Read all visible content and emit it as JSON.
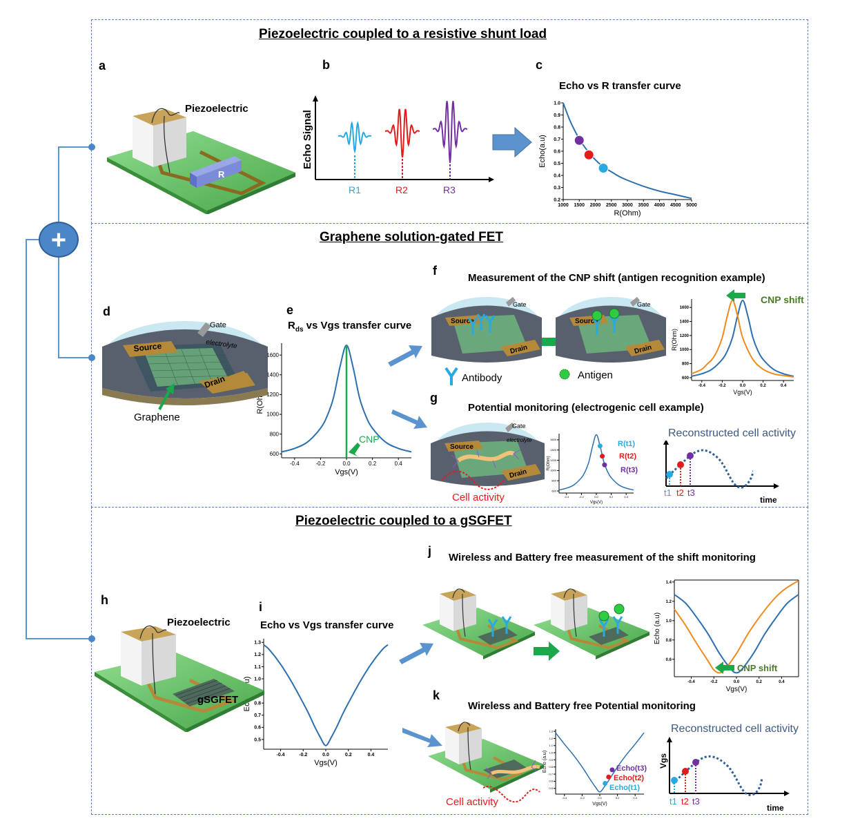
{
  "sections": [
    {
      "title": "Piezoelectric coupled to a resistive shunt load"
    },
    {
      "title": "Graphene solution-gated FET"
    },
    {
      "title": "Piezoelectric coupled to a gSGFET"
    }
  ],
  "panel_letters": [
    "a",
    "b",
    "c",
    "d",
    "e",
    "f",
    "g",
    "h",
    "i",
    "j",
    "k"
  ],
  "labels": {
    "piezo_a": "Piezoelectric",
    "r_label": "R",
    "echo_signal": "Echo Signal",
    "r1": "R1",
    "r2": "R2",
    "r3": "R3",
    "graphene": "Graphene",
    "source": "Source",
    "drain": "Drain",
    "gate": "Gate",
    "electrolyte": "electrolyte",
    "cnp": "CNP",
    "antibody": "Antibody",
    "antigen": "Antigen",
    "cnp_shift": "CNP shift",
    "cell_activity": "Cell activity",
    "rt1": "R(t1)",
    "rt2": "R(t2)",
    "rt3": "R(t3)",
    "reconstructed": "Reconstructed cell activity",
    "time": "time",
    "vgs": "Vgs",
    "t1": "t1",
    "t2": "t2",
    "t3": "t3",
    "piezo_h": "Piezoelectric",
    "gsgfet": "gSGFET",
    "echo_t1": "Echo(t1)",
    "echo_t2": "Echo(t2)",
    "echo_t3": "Echo(t3)"
  },
  "captions": {
    "c": "Echo vs R transfer curve",
    "e_main": "R",
    "e_sub": "ds",
    "e_rest": " vs Vgs transfer curve",
    "f": "Measurement of the CNP shift (antigen recognition example)",
    "g": "Potential monitoring (electrogenic cell example)",
    "i": "Echo vs Vgs transfer curve",
    "j": "Wireless and Battery free measurement of the shift monitoring",
    "k": "Wireless and Battery free Potential monitoring"
  },
  "colors": {
    "curve": "#2b6fae",
    "orange": "#f08a1c",
    "cyan": "#27a9e1",
    "red": "#e41b1b",
    "purple": "#7030a0",
    "green": "#1aa84a",
    "arrow": "#5b93cf",
    "cnp_shift": "#4a7a2a",
    "board": "#7fd07f"
  },
  "chart_data": [
    {
      "id": "c",
      "type": "line",
      "title": "Echo vs R transfer curve",
      "xlabel": "R(Ohm)",
      "ylabel": "Echo(a.u)",
      "xlim": [
        1000,
        5000
      ],
      "ylim": [
        0.2,
        1.0
      ],
      "xticks": [
        "1000",
        "1500",
        "2000",
        "2500",
        "3000",
        "3500",
        "4000",
        "4500",
        "5000"
      ],
      "yticks": [
        "0.2",
        "0.3",
        "0.4",
        "0.5",
        "0.6",
        "0.7",
        "0.8",
        "0.9",
        "1.0"
      ],
      "series": [
        {
          "x": [
            1000,
            1200,
            1400,
            1600,
            1800,
            2000,
            2250,
            2500,
            2750,
            3000,
            3500,
            4000,
            4500,
            5000
          ],
          "y": [
            1.0,
            0.86,
            0.75,
            0.66,
            0.59,
            0.53,
            0.47,
            0.43,
            0.39,
            0.36,
            0.31,
            0.27,
            0.24,
            0.21
          ]
        }
      ],
      "markers": [
        {
          "x": 1500,
          "y": 0.69,
          "color": "purple"
        },
        {
          "x": 1800,
          "y": 0.57,
          "color": "red"
        },
        {
          "x": 2250,
          "y": 0.46,
          "color": "cyan"
        }
      ]
    },
    {
      "id": "e",
      "type": "line",
      "title": "Rds vs Vgs transfer curve",
      "xlabel": "Vgs(V)",
      "ylabel": "R(Ohm)",
      "xlim": [
        -0.5,
        0.5
      ],
      "ylim": [
        560,
        1720
      ],
      "xticks": [
        "-0.4",
        "-0.2",
        "0.0",
        "0.2",
        "0.4"
      ],
      "yticks": [
        "600",
        "800",
        "1000",
        "1200",
        "1400",
        "1600"
      ],
      "cnp": 0.0,
      "series": [
        {
          "x": [
            -0.5,
            -0.4,
            -0.3,
            -0.2,
            -0.15,
            -0.1,
            -0.05,
            0,
            0.05,
            0.1,
            0.15,
            0.2,
            0.3,
            0.4,
            0.5
          ],
          "y": [
            620,
            655,
            720,
            860,
            980,
            1170,
            1480,
            1700,
            1480,
            1170,
            980,
            860,
            720,
            655,
            620
          ]
        }
      ]
    },
    {
      "id": "f",
      "type": "line",
      "xlabel": "Vgs(V)",
      "ylabel": "R(Ohm)",
      "xlim": [
        -0.5,
        0.5
      ],
      "ylim": [
        560,
        1720
      ],
      "xticks": [
        "-0.4",
        "-0.2",
        "0.0",
        "0.2",
        "0.4"
      ],
      "yticks": [
        "600",
        "800",
        "1000",
        "1200",
        "1400",
        "1600"
      ],
      "series": [
        {
          "color": "curve",
          "x": [
            -0.5,
            -0.4,
            -0.3,
            -0.2,
            -0.15,
            -0.1,
            -0.05,
            0,
            0.05,
            0.1,
            0.15,
            0.2,
            0.3,
            0.4,
            0.5
          ],
          "y": [
            620,
            655,
            720,
            860,
            980,
            1170,
            1480,
            1700,
            1480,
            1170,
            980,
            860,
            720,
            655,
            620
          ]
        },
        {
          "color": "orange",
          "x": [
            -0.5,
            -0.4,
            -0.35,
            -0.3,
            -0.25,
            -0.2,
            -0.15,
            -0.1,
            -0.05,
            0,
            0.1,
            0.2,
            0.3,
            0.4,
            0.5
          ],
          "y": [
            655,
            720,
            790,
            860,
            980,
            1170,
            1480,
            1700,
            1480,
            1170,
            860,
            720,
            655,
            630,
            610
          ]
        }
      ]
    },
    {
      "id": "g",
      "type": "line",
      "xlabel": "Vgs(V)",
      "ylabel": "R(Ohm)",
      "xlim": [
        -0.5,
        0.5
      ],
      "ylim": [
        560,
        1720
      ],
      "xticks": [
        "-0.4",
        "-0.2",
        "0.0",
        "0.2",
        "0.4"
      ],
      "yticks": [
        "600",
        "800",
        "1000",
        "1200",
        "1400",
        "1600"
      ],
      "series": [
        {
          "x": [
            -0.5,
            -0.4,
            -0.3,
            -0.2,
            -0.15,
            -0.1,
            -0.05,
            0,
            0.05,
            0.1,
            0.15,
            0.2,
            0.3,
            0.4,
            0.5
          ],
          "y": [
            620,
            655,
            720,
            860,
            980,
            1170,
            1480,
            1700,
            1480,
            1170,
            980,
            860,
            720,
            655,
            620
          ]
        }
      ],
      "markers": [
        {
          "x": 0.05,
          "y": 1480,
          "color": "cyan"
        },
        {
          "x": 0.08,
          "y": 1280,
          "color": "red"
        },
        {
          "x": 0.11,
          "y": 1110,
          "color": "purple"
        }
      ]
    },
    {
      "id": "i",
      "type": "line",
      "title": "Echo vs Vgs transfer curve",
      "xlabel": "Vgs(V)",
      "ylabel": "Echo (a.u)",
      "xlim": [
        -0.55,
        0.55
      ],
      "ylim": [
        0.42,
        1.33
      ],
      "xticks": [
        "-0.4",
        "-0.2",
        "0.0",
        "0.2",
        "0.4"
      ],
      "yticks": [
        "0.5",
        "0.6",
        "0.7",
        "0.8",
        "0.9",
        "1.0",
        "1.1",
        "1.2",
        "1.3"
      ],
      "series": [
        {
          "x": [
            -0.55,
            -0.5,
            -0.4,
            -0.3,
            -0.2,
            -0.15,
            -0.1,
            -0.05,
            0,
            0.05,
            0.1,
            0.15,
            0.2,
            0.3,
            0.4,
            0.5,
            0.55
          ],
          "y": [
            1.28,
            1.24,
            1.12,
            0.97,
            0.8,
            0.71,
            0.61,
            0.52,
            0.45,
            0.52,
            0.61,
            0.71,
            0.8,
            0.97,
            1.12,
            1.24,
            1.28
          ]
        }
      ]
    },
    {
      "id": "j",
      "type": "line",
      "xlabel": "Vgs(V)",
      "ylabel": "Echo (a.u)",
      "xlim": [
        -0.55,
        0.55
      ],
      "ylim": [
        0.42,
        1.42
      ],
      "xticks": [
        "-0.4",
        "-0.2",
        "0.0",
        "0.2",
        "0.4"
      ],
      "yticks": [
        "0.6",
        "0.8",
        "1.0",
        "1.2",
        "1.4"
      ],
      "series": [
        {
          "color": "curve",
          "x": [
            -0.55,
            -0.45,
            -0.35,
            -0.25,
            -0.15,
            -0.05,
            0,
            0.05,
            0.15,
            0.25,
            0.35,
            0.45,
            0.55
          ],
          "y": [
            1.27,
            1.18,
            1.03,
            0.86,
            0.66,
            0.5,
            0.46,
            0.5,
            0.66,
            0.86,
            1.03,
            1.18,
            1.27
          ]
        },
        {
          "color": "orange",
          "x": [
            -0.55,
            -0.45,
            -0.35,
            -0.25,
            -0.2,
            -0.15,
            -0.1,
            0,
            0.1,
            0.2,
            0.3,
            0.4,
            0.5,
            0.55
          ],
          "y": [
            1.12,
            0.95,
            0.76,
            0.58,
            0.49,
            0.46,
            0.5,
            0.66,
            0.86,
            1.03,
            1.18,
            1.3,
            1.38,
            1.41
          ]
        }
      ]
    },
    {
      "id": "k",
      "type": "line",
      "xlabel": "Vgs(V)",
      "ylabel": "Echo (a.u)",
      "xlim": [
        -0.5,
        0.5
      ],
      "ylim": [
        0.42,
        1.33
      ],
      "xticks": [
        "-0.4",
        "-0.2",
        "0.0",
        "0.2",
        "0.4"
      ],
      "yticks": [
        "0.5",
        "0.6",
        "0.7",
        "0.8",
        "0.9",
        "1.0",
        "1.1",
        "1.2",
        "1.3"
      ],
      "series": [
        {
          "x": [
            -0.5,
            -0.4,
            -0.3,
            -0.2,
            -0.1,
            -0.05,
            0,
            0.05,
            0.1,
            0.2,
            0.3,
            0.4,
            0.5
          ],
          "y": [
            1.28,
            1.12,
            0.97,
            0.8,
            0.61,
            0.52,
            0.45,
            0.52,
            0.61,
            0.8,
            0.97,
            1.12,
            1.28
          ]
        }
      ],
      "markers": [
        {
          "x": 0.06,
          "y": 0.57,
          "color": "cyan"
        },
        {
          "x": 0.1,
          "y": 0.66,
          "color": "red"
        },
        {
          "x": 0.14,
          "y": 0.76,
          "color": "purple"
        }
      ]
    }
  ]
}
